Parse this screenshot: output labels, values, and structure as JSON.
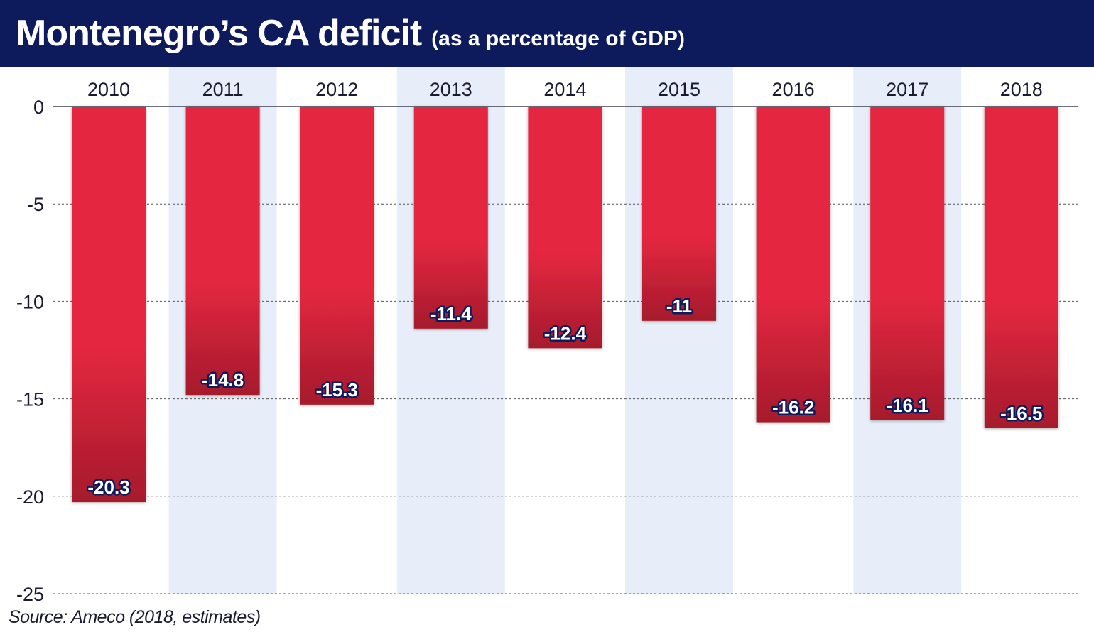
{
  "header": {
    "title": "Montenegro’s CA deficit",
    "subtitle": "(as a percentage of GDP)"
  },
  "source": "Source: Ameco (2018, estimates)",
  "colors": {
    "header_bg": "#0d1a5c",
    "bar_top": "#e52840",
    "bar_bottom": "#a51a2c",
    "stripe": "#e8eef9",
    "label_text": "#ffffff",
    "label_outline": "#0d1a5c"
  },
  "chart_data": {
    "type": "bar",
    "categories": [
      "2010",
      "2011",
      "2012",
      "2013",
      "2014",
      "2015",
      "2016",
      "2017",
      "2018"
    ],
    "values": [
      -20.3,
      -14.8,
      -15.3,
      -11.4,
      -12.4,
      -11,
      -16.2,
      -16.1,
      -16.5
    ],
    "value_labels": [
      "-20.3",
      "-14.8",
      "-15.3",
      "-11.4",
      "-12.4",
      "-11",
      "-16.2",
      "-16.1",
      "-16.5"
    ],
    "title": "Montenegro’s CA deficit",
    "subtitle": "(as a percentage of GDP)",
    "xlabel": "",
    "ylabel": "",
    "ylim": [
      -25,
      0
    ],
    "yticks": [
      0,
      -5,
      -10,
      -15,
      -20,
      -25
    ],
    "ytick_labels": [
      "0",
      "-5",
      "-10",
      "-15",
      "-20",
      "-25"
    ],
    "category_axis_position": "top",
    "grid": "horizontal dashed",
    "legend": "none"
  }
}
